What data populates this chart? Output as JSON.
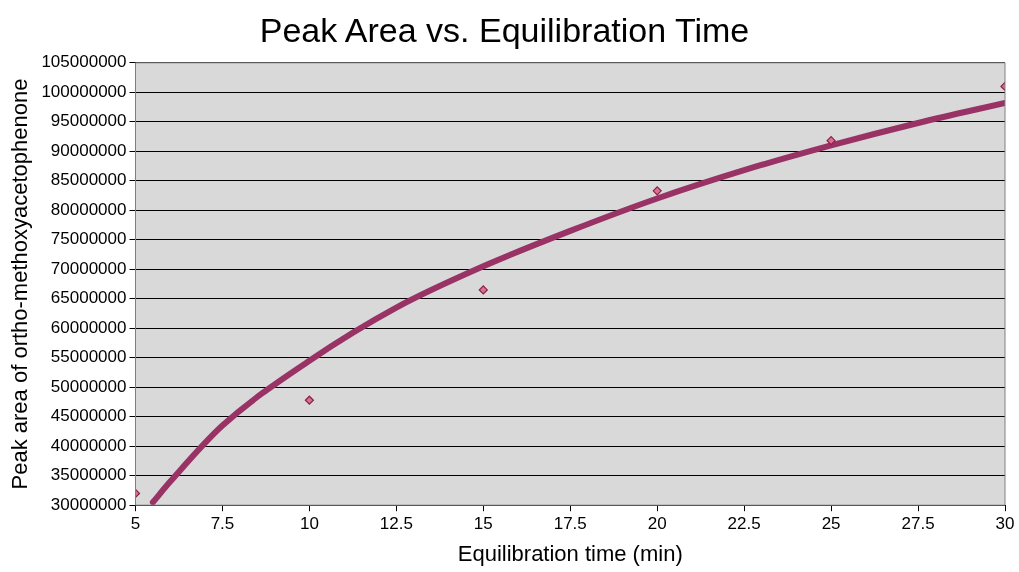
{
  "chart_data": {
    "type": "scatter",
    "title": "Peak Area vs. Equilibration Time",
    "xlabel": "Equilibration time (min)",
    "ylabel": "Peak area of ortho-methoxyacetophenone",
    "series": [
      {
        "color": "#8b2040",
        "x": [
          5,
          10,
          15,
          20,
          25,
          30
        ],
        "values": [
          32000000,
          47800000,
          66500000,
          83300000,
          91800000,
          101000000
        ],
        "marker": "diamond"
      },
      {
        "type": "line",
        "color": "#993366",
        "x": [
          5.5,
          6,
          7.5,
          10,
          12.5,
          15,
          17.5,
          20,
          22.5,
          25,
          27.5,
          30
        ],
        "values": [
          30500000,
          34000000,
          43500000,
          54500000,
          63500000,
          70500000,
          76500000,
          82000000,
          86800000,
          91000000,
          94800000,
          98200000
        ],
        "marker": "none"
      }
    ],
    "xlim": [
      5,
      30
    ],
    "xticks": [
      5,
      7.5,
      10,
      12.5,
      15,
      17.5,
      20,
      22.5,
      25,
      27.5,
      30
    ],
    "ylim": [
      30000000,
      105000000
    ],
    "yticks": [
      30000000,
      35000000,
      40000000,
      45000000,
      50000000,
      55000000,
      60000000,
      65000000,
      70000000,
      75000000,
      80000000,
      85000000,
      90000000,
      95000000,
      100000000,
      105000000
    ],
    "grid": "y",
    "legend": false
  }
}
